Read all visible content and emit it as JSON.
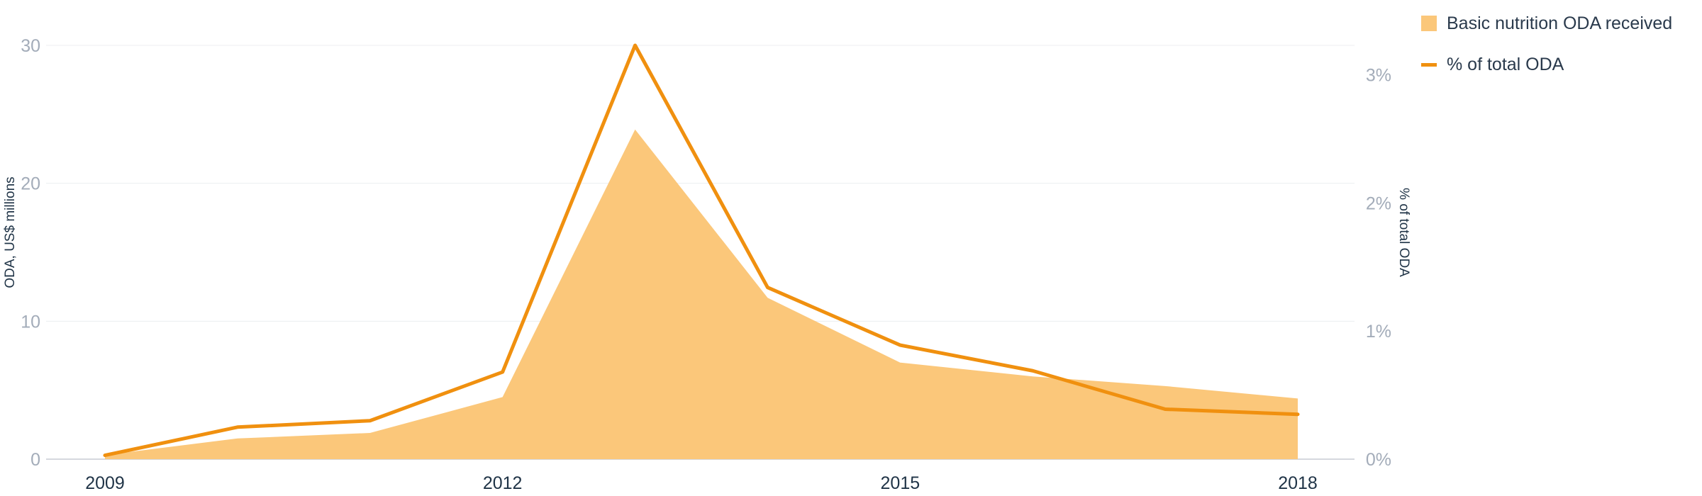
{
  "chart_data": {
    "type": "area",
    "x": [
      2009,
      2010,
      2011,
      2012,
      2013,
      2014,
      2015,
      2016,
      2017,
      2018
    ],
    "x_tick_labels": [
      "2009",
      "2012",
      "2015",
      "2018"
    ],
    "ylabel": "ODA, US$ millions",
    "y2label": "% of total ODA",
    "ylim": [
      0,
      30
    ],
    "y2lim": [
      0,
      3.23
    ],
    "y_ticks": [
      "0",
      "10",
      "20",
      "30"
    ],
    "y2_ticks": [
      "0%",
      "1%",
      "2%",
      "3%"
    ],
    "grid": true,
    "legend_position": "top-right",
    "series": [
      {
        "name": "Basic nutrition ODA received",
        "kind": "area",
        "axis": "left",
        "color": "#fbc77a",
        "values": [
          0.3,
          1.5,
          1.9,
          4.5,
          23.9,
          11.7,
          7.0,
          6.0,
          5.3,
          4.4
        ]
      },
      {
        "name": "% of total ODA",
        "kind": "line",
        "axis": "right",
        "color": "#f0900f",
        "values": [
          0.03,
          0.25,
          0.3,
          0.68,
          3.23,
          1.34,
          0.89,
          0.69,
          0.39,
          0.35
        ]
      }
    ]
  }
}
